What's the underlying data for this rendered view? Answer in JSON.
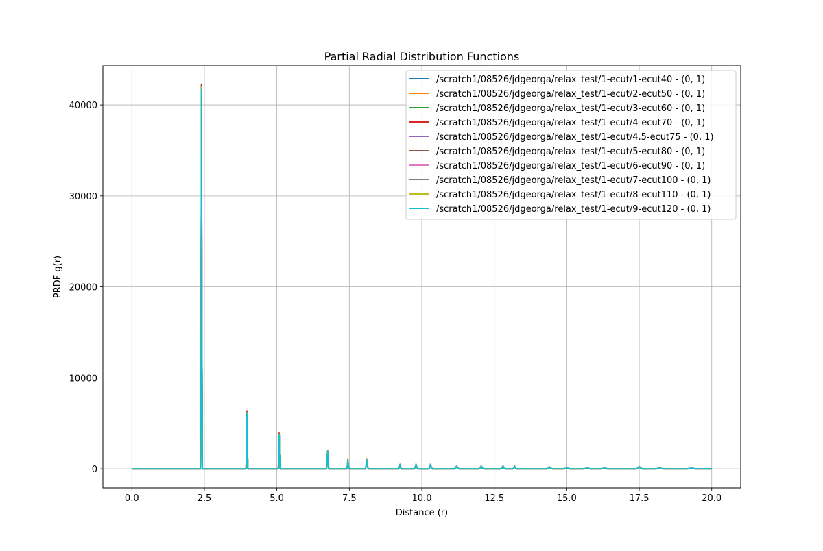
{
  "chart_data": {
    "type": "line",
    "title": "Partial Radial Distribution Functions",
    "xlabel": "Distance (r)",
    "ylabel": "PRDF g(r)",
    "xlim": [
      -1.0,
      21.0
    ],
    "ylim": [
      -2100,
      44300
    ],
    "x_ticks": [
      0.0,
      2.5,
      5.0,
      7.5,
      10.0,
      12.5,
      15.0,
      17.5,
      20.0
    ],
    "x_tick_labels": [
      "0.0",
      "2.5",
      "5.0",
      "7.5",
      "10.0",
      "12.5",
      "15.0",
      "17.5",
      "20.0"
    ],
    "y_ticks": [
      0,
      10000,
      20000,
      30000,
      40000
    ],
    "y_tick_labels": [
      "0",
      "10000",
      "20000",
      "30000",
      "40000"
    ],
    "grid": true,
    "legend_position": "top-right",
    "peaks": [
      {
        "x": 2.4,
        "width": 0.03
      },
      {
        "x": 3.97,
        "width": 0.03
      },
      {
        "x": 5.08,
        "width": 0.03
      },
      {
        "x": 6.75,
        "width": 0.04
      },
      {
        "x": 7.45,
        "width": 0.04
      },
      {
        "x": 8.1,
        "width": 0.05
      },
      {
        "x": 9.25,
        "width": 0.04
      },
      {
        "x": 9.8,
        "width": 0.06
      },
      {
        "x": 10.3,
        "width": 0.06
      },
      {
        "x": 11.2,
        "width": 0.08
      },
      {
        "x": 12.05,
        "width": 0.08
      },
      {
        "x": 12.8,
        "width": 0.08
      },
      {
        "x": 13.2,
        "width": 0.06
      },
      {
        "x": 14.4,
        "width": 0.1
      },
      {
        "x": 15.0,
        "width": 0.1
      },
      {
        "x": 15.7,
        "width": 0.1
      },
      {
        "x": 16.3,
        "width": 0.1
      },
      {
        "x": 17.5,
        "width": 0.1
      },
      {
        "x": 18.2,
        "width": 0.12
      },
      {
        "x": 19.3,
        "width": 0.15
      }
    ],
    "series": [
      {
        "name": "/scratch1/08526/jdgeorga/relax_test/1-ecut/1-ecut40 - (0, 1)",
        "color": "#1f77b4",
        "peak_heights": [
          42000,
          6200,
          3800,
          2000,
          1000,
          1000,
          500,
          500,
          500,
          300,
          300,
          300,
          300,
          200,
          150,
          150,
          150,
          250,
          120,
          100
        ]
      },
      {
        "name": "/scratch1/08526/jdgeorga/relax_test/1-ecut/2-ecut50 - (0, 1)",
        "color": "#ff7f0e",
        "peak_heights": [
          42300,
          6400,
          3950,
          2050,
          1050,
          1050,
          520,
          520,
          520,
          310,
          310,
          310,
          310,
          210,
          160,
          160,
          160,
          260,
          125,
          105
        ]
      },
      {
        "name": "/scratch1/08526/jdgeorga/relax_test/1-ecut/3-ecut60 - (0, 1)",
        "color": "#2ca02c",
        "peak_heights": [
          42100,
          6250,
          3850,
          2000,
          1000,
          1000,
          500,
          500,
          500,
          300,
          300,
          300,
          300,
          200,
          150,
          150,
          150,
          250,
          120,
          100
        ]
      },
      {
        "name": "/scratch1/08526/jdgeorga/relax_test/1-ecut/4-ecut70 - (0, 1)",
        "color": "#d62728",
        "peak_heights": [
          42200,
          6300,
          3900,
          2000,
          1000,
          1000,
          500,
          500,
          500,
          300,
          300,
          300,
          300,
          200,
          150,
          150,
          150,
          250,
          120,
          100
        ]
      },
      {
        "name": "/scratch1/08526/jdgeorga/relax_test/1-ecut/4.5-ecut75 - (0, 1)",
        "color": "#9467bd",
        "peak_heights": [
          42000,
          6200,
          3800,
          2000,
          1000,
          1000,
          500,
          500,
          500,
          300,
          300,
          300,
          300,
          200,
          150,
          150,
          150,
          250,
          120,
          100
        ]
      },
      {
        "name": "/scratch1/08526/jdgeorga/relax_test/1-ecut/5-ecut80 - (0, 1)",
        "color": "#8c564b",
        "peak_heights": [
          42100,
          6250,
          3850,
          2000,
          1000,
          1000,
          500,
          500,
          500,
          300,
          300,
          300,
          300,
          200,
          150,
          150,
          150,
          250,
          120,
          100
        ]
      },
      {
        "name": "/scratch1/08526/jdgeorga/relax_test/1-ecut/6-ecut90 - (0, 1)",
        "color": "#e377c2",
        "peak_heights": [
          42000,
          6200,
          3800,
          2000,
          1000,
          1000,
          500,
          500,
          500,
          300,
          300,
          300,
          300,
          200,
          150,
          150,
          150,
          250,
          120,
          100
        ]
      },
      {
        "name": "/scratch1/08526/jdgeorga/relax_test/1-ecut/7-ecut100 - (0, 1)",
        "color": "#7f7f7f",
        "peak_heights": [
          42000,
          6200,
          3800,
          2000,
          1000,
          1000,
          500,
          500,
          500,
          300,
          300,
          300,
          300,
          200,
          150,
          150,
          150,
          250,
          120,
          100
        ]
      },
      {
        "name": "/scratch1/08526/jdgeorga/relax_test/1-ecut/8-ecut110 - (0, 1)",
        "color": "#bcbd22",
        "peak_heights": [
          41900,
          6150,
          3780,
          2000,
          1000,
          1000,
          500,
          500,
          500,
          300,
          300,
          300,
          300,
          200,
          150,
          150,
          150,
          250,
          120,
          100
        ]
      },
      {
        "name": "/scratch1/08526/jdgeorga/relax_test/1-ecut/9-ecut120 - (0, 1)",
        "color": "#17becf",
        "peak_heights": [
          41700,
          6100,
          3700,
          1950,
          980,
          980,
          490,
          490,
          490,
          290,
          290,
          290,
          290,
          190,
          145,
          145,
          145,
          240,
          115,
          95
        ]
      }
    ]
  }
}
